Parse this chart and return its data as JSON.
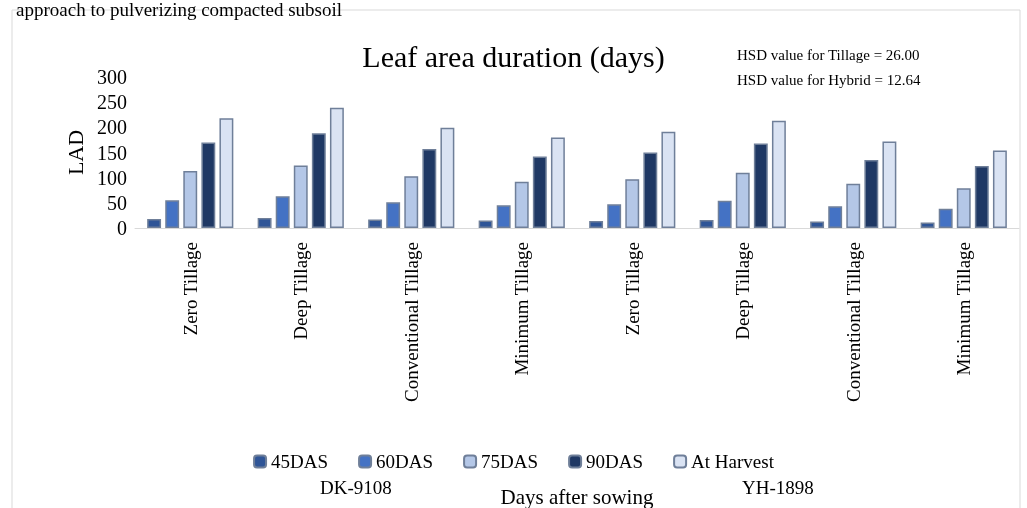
{
  "chart_data": {
    "type": "bar",
    "title": "Leaf area duration (days)",
    "xlabel": "Days after sowing",
    "ylabel": "LAD",
    "categories": [
      "Zero Tillage",
      "Deep Tillage",
      "Conventional Tillage",
      "Minimum Tillage",
      "Zero Tillage",
      "Deep Tillage",
      "Conventional Tillage",
      "Minimum Tillage"
    ],
    "series": [
      {
        "name": "45DAS",
        "color": "#2f5597",
        "values": [
          18,
          20,
          17,
          15,
          14,
          16,
          13,
          11
        ]
      },
      {
        "name": "60DAS",
        "color": "#4472c4",
        "values": [
          55,
          63,
          51,
          45,
          47,
          54,
          43,
          38
        ]
      },
      {
        "name": "75DAS",
        "color": "#b4c7e7",
        "values": [
          113,
          124,
          103,
          92,
          97,
          110,
          88,
          79
        ]
      },
      {
        "name": "90DAS",
        "color": "#1f3864",
        "values": [
          170,
          188,
          157,
          142,
          150,
          168,
          135,
          123
        ]
      },
      {
        "name": "At Harvest",
        "color": "#dae3f3",
        "values": [
          218,
          239,
          199,
          180,
          191,
          213,
          172,
          154
        ]
      }
    ],
    "ylim": [
      0,
      300
    ],
    "yticks": [
      0,
      50,
      100,
      150,
      200,
      250,
      300
    ],
    "grid": false,
    "legend": "bottom",
    "annotations": [
      "approach to pulverizing compacted subsoil",
      "HSD value for Tillage = 26.00",
      "HSD value for Hybrid = 12.64",
      "DK-9108",
      "YH-1898"
    ]
  }
}
